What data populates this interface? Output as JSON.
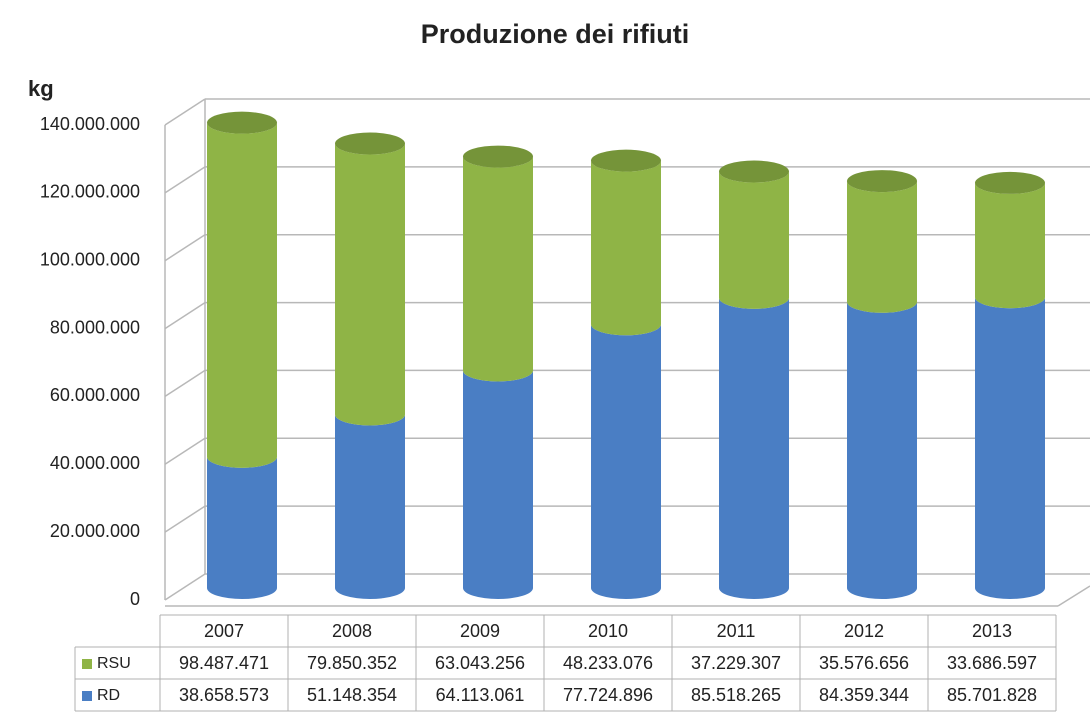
{
  "chart_data": {
    "type": "bar",
    "stacked": true,
    "title": "Produzione dei rifiuti",
    "y_label": "kg",
    "categories": [
      "2007",
      "2008",
      "2009",
      "2010",
      "2011",
      "2012",
      "2013"
    ],
    "series": [
      {
        "name": "RSU",
        "color": "#8fb446",
        "values": [
          98487471,
          79850352,
          63043256,
          48233076,
          37229307,
          35576656,
          33686597
        ],
        "value_labels": [
          "98.487.471",
          "79.850.352",
          "63.043.256",
          "48.233.076",
          "37.229.307",
          "35.576.656",
          "33.686.597"
        ]
      },
      {
        "name": "RD",
        "color": "#4a7ec4",
        "values": [
          38658573,
          51148354,
          64113061,
          77724896,
          85518265,
          84359344,
          85701828
        ],
        "value_labels": [
          "38.658.573",
          "51.148.354",
          "64.113.061",
          "77.724.896",
          "85.518.265",
          "84.359.344",
          "85.701.828"
        ]
      }
    ],
    "ylim": [
      0,
      140000000
    ],
    "yticks": [
      0,
      {
        "value": 20000000,
        "label": "20.000.000"
      },
      {
        "value": 40000000,
        "label": "40.000.000"
      },
      {
        "value": 60000000,
        "label": "60.000.000"
      },
      {
        "value": 80000000,
        "label": "80.000.000"
      },
      {
        "value": 100000000,
        "label": "100.000.000"
      },
      {
        "value": 120000000,
        "label": "120.000.000"
      },
      {
        "value": 140000000,
        "label": "140.000.000"
      }
    ],
    "grid": true
  }
}
